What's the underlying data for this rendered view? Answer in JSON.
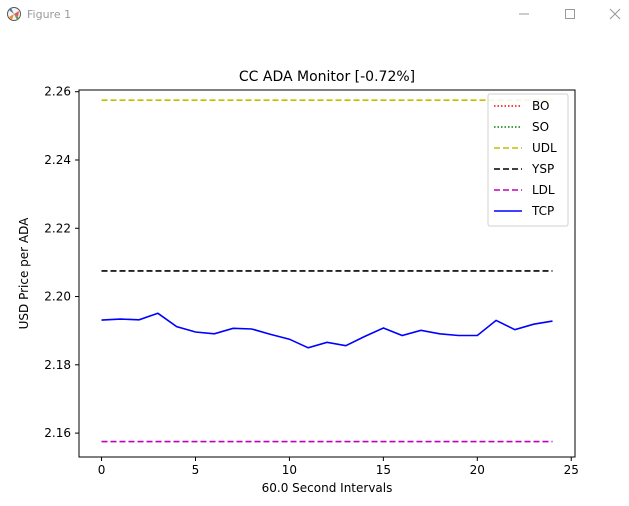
{
  "window": {
    "title": "Figure 1",
    "icon": "matplotlib-figure-icon",
    "controls": [
      "minimize-icon",
      "maximize-icon",
      "close-icon"
    ]
  },
  "chart_data": {
    "type": "line",
    "title": "CC ADA Monitor [-0.72%]",
    "xlabel": "60.0 Second Intervals",
    "ylabel": "USD Price per ADA",
    "xlim": [
      -1.2,
      25.2
    ],
    "ylim": [
      2.153,
      2.2605
    ],
    "xticks": [
      0,
      5,
      10,
      15,
      20,
      25
    ],
    "xtick_labels": [
      "0",
      "5",
      "10",
      "15",
      "20",
      "25"
    ],
    "yticks": [
      2.16,
      2.18,
      2.2,
      2.22,
      2.24,
      2.26
    ],
    "ytick_labels": [
      "2.16",
      "2.18",
      "2.20",
      "2.22",
      "2.24",
      "2.26"
    ],
    "grid": false,
    "legend_position": "top-right",
    "series": [
      {
        "name": "BO",
        "style": "dotted",
        "color": "#ff0000",
        "x": [],
        "y": []
      },
      {
        "name": "SO",
        "style": "dotted",
        "color": "#008000",
        "x": [],
        "y": []
      },
      {
        "name": "UDL",
        "style": "dashed",
        "color": "#bfbf00",
        "x": [
          0,
          24
        ],
        "y": [
          2.2575,
          2.2575
        ]
      },
      {
        "name": "YSP",
        "style": "dashed",
        "color": "#000000",
        "x": [
          0,
          24
        ],
        "y": [
          2.2075,
          2.2075
        ]
      },
      {
        "name": "LDL",
        "style": "dashed",
        "color": "#bf00bf",
        "x": [
          0,
          24
        ],
        "y": [
          2.1575,
          2.1575
        ]
      },
      {
        "name": "TCP",
        "style": "solid",
        "color": "#0000ff",
        "x": [
          0,
          1,
          2,
          3,
          4,
          5,
          6,
          7,
          8,
          9,
          10,
          11,
          12,
          13,
          14,
          15,
          16,
          17,
          18,
          19,
          20,
          21,
          22,
          23,
          24
        ],
        "y": [
          2.1931,
          2.1934,
          2.1932,
          2.1951,
          2.1912,
          2.1896,
          2.1891,
          2.1907,
          2.1905,
          2.1889,
          2.1875,
          2.185,
          2.1866,
          2.1856,
          2.1883,
          2.1908,
          2.1886,
          2.1901,
          2.1891,
          2.1886,
          2.1886,
          2.193,
          2.1903,
          2.1919,
          2.1928
        ]
      }
    ]
  }
}
